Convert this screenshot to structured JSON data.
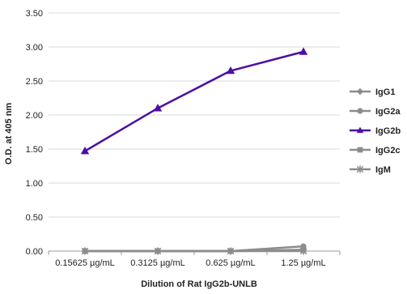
{
  "chart_data": {
    "type": "line",
    "title": "",
    "xlabel": "Dilution of Rat IgG2b-UNLB",
    "ylabel": "O.D. at 405 nm",
    "categories": [
      "0.15625 µg/mL",
      "0.3125 µg/mL",
      "0.625 µg/mL",
      "1.25 µg/mL"
    ],
    "ylim": [
      0,
      3.5
    ],
    "yticks": [
      "0.00",
      "0.50",
      "1.00",
      "1.50",
      "2.00",
      "2.50",
      "3.00",
      "3.50"
    ],
    "grid": "horizontal",
    "legend_position": "right",
    "series": [
      {
        "name": "IgG1",
        "values": [
          0.0,
          0.0,
          0.0,
          0.02
        ],
        "color": "#8c8c8c",
        "marker": "diamond"
      },
      {
        "name": "IgG2a",
        "values": [
          0.0,
          0.0,
          0.0,
          0.07
        ],
        "color": "#8c8c8c",
        "marker": "circle"
      },
      {
        "name": "IgG2b",
        "values": [
          1.47,
          2.1,
          2.65,
          2.93
        ],
        "color": "#4b0fa3",
        "marker": "triangle"
      },
      {
        "name": "IgG2c",
        "values": [
          0.0,
          0.0,
          0.0,
          0.01
        ],
        "color": "#8c8c8c",
        "marker": "square"
      },
      {
        "name": "IgM",
        "values": [
          0.0,
          0.0,
          0.0,
          0.0
        ],
        "color": "#8c8c8c",
        "marker": "star"
      }
    ]
  }
}
